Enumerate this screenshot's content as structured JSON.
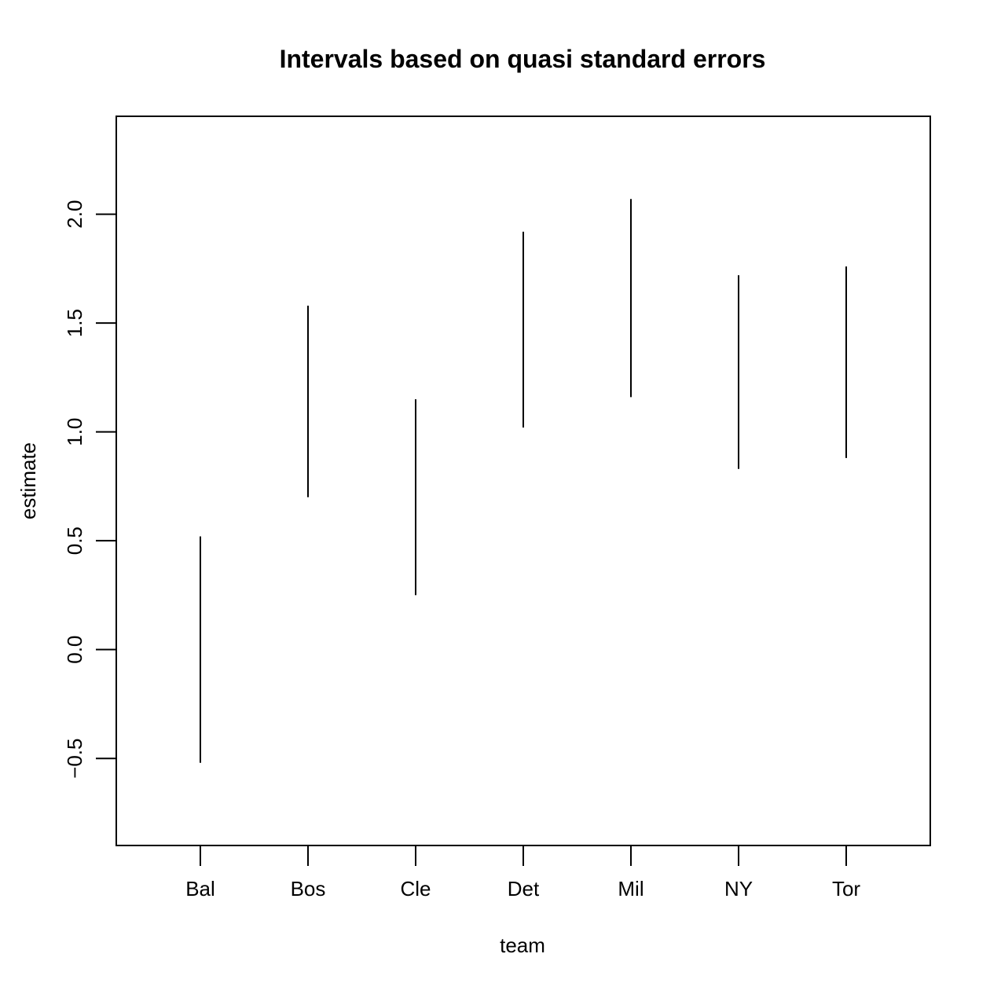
{
  "chart_data": {
    "type": "interval",
    "title": "Intervals based on quasi standard errors",
    "xlabel": "team",
    "ylabel": "estimate",
    "categories": [
      "Bal",
      "Bos",
      "Cle",
      "Det",
      "Mil",
      "NY",
      "Tor"
    ],
    "lower": [
      -0.52,
      0.7,
      0.25,
      1.02,
      1.16,
      0.83,
      0.88
    ],
    "upper": [
      0.52,
      1.58,
      1.15,
      1.92,
      2.07,
      1.72,
      1.76
    ],
    "ylim": [
      -0.9,
      2.45
    ],
    "yticks": [
      -0.5,
      0.0,
      0.5,
      1.0,
      1.5,
      2.0
    ],
    "ytick_labels": [
      "−0.5",
      "0.0",
      "0.5",
      "1.0",
      "1.5",
      "2.0"
    ],
    "grid": false,
    "line_color": "#000000"
  }
}
